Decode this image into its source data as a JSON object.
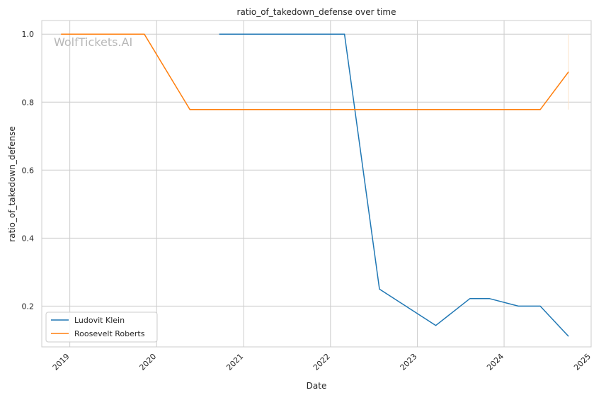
{
  "chart_data": {
    "type": "line",
    "title": "ratio_of_takedown_defense over time",
    "xlabel": "Date",
    "ylabel": "ratio_of_takedown_defense",
    "watermark": "WolfTickets.AI",
    "x_ticks": [
      "2019",
      "2020",
      "2021",
      "2022",
      "2023",
      "2024",
      "2025"
    ],
    "y_ticks": [
      "0.2",
      "0.4",
      "0.6",
      "0.8",
      "1.0"
    ],
    "xlim": [
      "2018-09-05",
      "2025-01-01"
    ],
    "ylim": [
      0.08,
      1.04
    ],
    "grid": true,
    "legend_position": "lower-left",
    "series": [
      {
        "name": "Ludovit Klein",
        "color": "#1f77b4",
        "points": [
          [
            "2020-09-20",
            1.0
          ],
          [
            "2022-03-01",
            1.0
          ],
          [
            "2022-07-26",
            0.25
          ],
          [
            "2023-03-20",
            0.143
          ],
          [
            "2023-08-10",
            0.222
          ],
          [
            "2023-11-01",
            0.222
          ],
          [
            "2024-03-01",
            0.2
          ],
          [
            "2024-06-01",
            0.2
          ],
          [
            "2024-09-28",
            0.111
          ]
        ]
      },
      {
        "name": "Roosevelt Roberts",
        "color": "#ff7f0e",
        "points": [
          [
            "2018-11-25",
            1.0
          ],
          [
            "2019-11-10",
            1.0
          ],
          [
            "2020-05-20",
            0.778
          ],
          [
            "2024-06-01",
            0.778
          ],
          [
            "2024-09-28",
            0.889
          ]
        ]
      }
    ]
  }
}
